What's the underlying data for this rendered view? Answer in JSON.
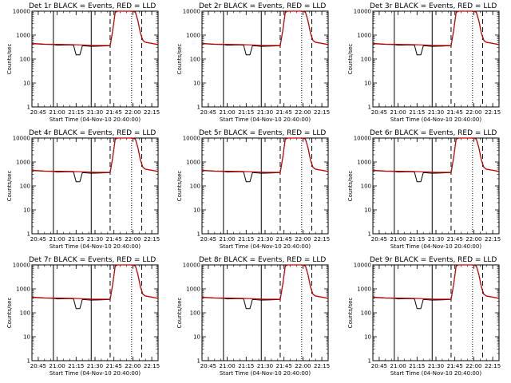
{
  "chart_data": {
    "type": "line",
    "yscale": "log",
    "ylim": [
      1,
      10000
    ],
    "xlim": [
      "20:40",
      "22:20"
    ],
    "ylabel": "Counts/sec",
    "xlabel": "Start Time (04-Nov-10 20:40:00)",
    "x_ticks": [
      "20:45",
      "21:00",
      "21:15",
      "21:30",
      "21:45",
      "22:00",
      "22:15"
    ],
    "y_ticks": [
      "1",
      "10",
      "100",
      "1000",
      "10000"
    ],
    "colors": {
      "events": "#000000",
      "lld": "#cc0000"
    },
    "vertical_lines": [
      {
        "time": "20:57",
        "style": "solid"
      },
      {
        "time": "21:27",
        "style": "solid"
      },
      {
        "time": "21:42",
        "style": "dashed"
      },
      {
        "time": "21:59",
        "style": "dotted"
      },
      {
        "time": "22:07",
        "style": "dashed"
      }
    ],
    "panels": [
      {
        "title": "Det 1r BLACK = Events, RED = LLD"
      },
      {
        "title": "Det 2r BLACK = Events, RED = LLD"
      },
      {
        "title": "Det 3r BLACK = Events, RED = LLD"
      },
      {
        "title": "Det 4r BLACK = Events, RED = LLD"
      },
      {
        "title": "Det 5r BLACK = Events, RED = LLD"
      },
      {
        "title": "Det 6r BLACK = Events, RED = LLD"
      },
      {
        "title": "Det 7r BLACK = Events, RED = LLD"
      },
      {
        "title": "Det 8r BLACK = Events, RED = LLD"
      },
      {
        "title": "Det 9r BLACK = Events, RED = LLD"
      }
    ],
    "series": [
      {
        "x": [
          "20:40",
          "20:50",
          "20:57",
          "21:00",
          "21:10",
          "21:13",
          "21:15",
          "21:18",
          "21:20",
          "21:27",
          "21:35",
          "21:42",
          "21:44",
          "21:46",
          "21:48",
          "21:50",
          "22:00",
          "22:02",
          "22:04",
          "22:06",
          "22:08",
          "22:10",
          "22:15",
          "22:20"
        ],
        "values": [
          440,
          410,
          400,
          380,
          390,
          380,
          150,
          150,
          360,
          340,
          350,
          360,
          1500,
          9000,
          10000,
          10000,
          10000,
          9000,
          4000,
          1200,
          600,
          500,
          450,
          400
        ]
      },
      {
        "x": [
          "20:40",
          "20:50",
          "21:00",
          "21:10",
          "21:20",
          "21:30",
          "21:42",
          "21:44",
          "21:46",
          "21:48",
          "21:50",
          "22:00",
          "22:02",
          "22:04",
          "22:06",
          "22:08",
          "22:10",
          "22:15",
          "22:20"
        ],
        "values": [
          450,
          420,
          410,
          400,
          390,
          370,
          370,
          1500,
          9000,
          10000,
          10000,
          10000,
          9000,
          4000,
          1200,
          600,
          500,
          450,
          400
        ]
      }
    ]
  }
}
